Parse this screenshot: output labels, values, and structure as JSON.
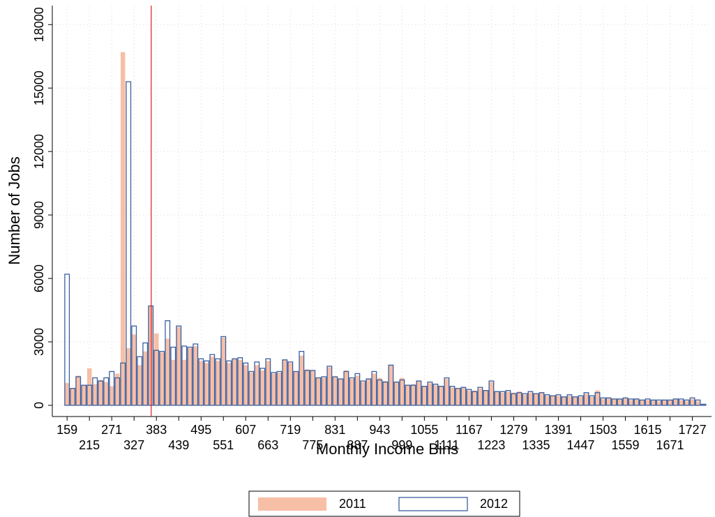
{
  "chart_data": {
    "type": "bar",
    "x_label": "Monthly Income Bins",
    "y_label": "Number of Jobs",
    "x": [
      159,
      173,
      187,
      201,
      215,
      229,
      243,
      257,
      271,
      285,
      299,
      313,
      327,
      341,
      355,
      369,
      383,
      397,
      411,
      425,
      439,
      453,
      467,
      481,
      495,
      509,
      523,
      537,
      551,
      565,
      579,
      593,
      607,
      621,
      635,
      649,
      663,
      677,
      691,
      705,
      719,
      733,
      747,
      761,
      775,
      789,
      803,
      817,
      831,
      845,
      859,
      873,
      887,
      901,
      915,
      929,
      943,
      957,
      971,
      985,
      999,
      1013,
      1027,
      1041,
      1055,
      1069,
      1083,
      1097,
      1111,
      1125,
      1139,
      1153,
      1167,
      1181,
      1195,
      1209,
      1223,
      1237,
      1251,
      1265,
      1279,
      1293,
      1307,
      1321,
      1335,
      1349,
      1363,
      1377,
      1391,
      1405,
      1419,
      1433,
      1447,
      1461,
      1475,
      1489,
      1503,
      1517,
      1531,
      1545,
      1559,
      1573,
      1587,
      1601,
      1615,
      1629,
      1643,
      1657,
      1671,
      1685,
      1699,
      1713,
      1727,
      1741,
      1755
    ],
    "series": [
      {
        "name": "2011",
        "color": "#f7bfa6",
        "style": "filled",
        "values": [
          1050,
          800,
          1400,
          950,
          1750,
          1000,
          1200,
          1100,
          900,
          1500,
          16700,
          2700,
          3350,
          1900,
          2550,
          4700,
          3400,
          2500,
          3150,
          2150,
          3700,
          2150,
          2700,
          2800,
          2100,
          2000,
          2300,
          2100,
          3200,
          2000,
          2200,
          2150,
          1900,
          1550,
          1900,
          1650,
          2100,
          1500,
          1550,
          2150,
          2000,
          1600,
          2350,
          1700,
          1650,
          1300,
          1300,
          1800,
          1350,
          1250,
          1650,
          1250,
          1400,
          1100,
          1250,
          1500,
          1300,
          1150,
          1900,
          1100,
          1300,
          950,
          1000,
          1150,
          900,
          1050,
          950,
          900,
          1250,
          850,
          800,
          850,
          700,
          700,
          800,
          700,
          1100,
          650,
          600,
          650,
          600,
          650,
          500,
          600,
          550,
          600,
          450,
          450,
          450,
          400,
          450,
          400,
          400,
          550,
          400,
          700,
          300,
          350,
          300,
          300,
          350,
          250,
          300,
          250,
          250,
          250,
          200,
          250,
          250,
          300,
          250,
          200,
          300,
          200,
          50
        ]
      },
      {
        "name": "2012",
        "color": "#3a5fa0",
        "style": "hollow",
        "values": [
          6200,
          800,
          1350,
          950,
          950,
          1300,
          1150,
          1300,
          1600,
          1300,
          2000,
          15300,
          3750,
          2300,
          2950,
          4700,
          2600,
          2550,
          4000,
          2750,
          3750,
          2800,
          2750,
          2900,
          2200,
          2100,
          2400,
          2200,
          3250,
          2100,
          2200,
          2250,
          2000,
          1600,
          2050,
          1750,
          2200,
          1550,
          1600,
          2150,
          2050,
          1600,
          2550,
          1650,
          1650,
          1300,
          1350,
          1850,
          1350,
          1250,
          1600,
          1300,
          1500,
          1150,
          1250,
          1600,
          1200,
          1100,
          1900,
          1100,
          1200,
          950,
          950,
          1150,
          900,
          1100,
          1000,
          900,
          1300,
          900,
          800,
          850,
          750,
          650,
          850,
          700,
          1150,
          650,
          650,
          700,
          550,
          600,
          550,
          650,
          550,
          600,
          500,
          450,
          500,
          400,
          500,
          400,
          450,
          600,
          450,
          600,
          350,
          350,
          300,
          300,
          350,
          300,
          300,
          250,
          300,
          250,
          250,
          250,
          250,
          300,
          300,
          250,
          350,
          250,
          50
        ]
      }
    ],
    "reference_line": {
      "value": 370,
      "color": "#e41a1c"
    },
    "xlim": [
      122,
      1775
    ],
    "ylim": [
      -530,
      18900
    ],
    "xticks": [
      159,
      215,
      271,
      327,
      383,
      439,
      495,
      551,
      607,
      663,
      719,
      775,
      831,
      887,
      943,
      999,
      1055,
      1111,
      1167,
      1223,
      1279,
      1335,
      1391,
      1447,
      1503,
      1559,
      1615,
      1671,
      1727
    ],
    "yticks": [
      0,
      3000,
      6000,
      9000,
      12000,
      15000,
      18000
    ],
    "grid": true,
    "legend": "bottom"
  }
}
